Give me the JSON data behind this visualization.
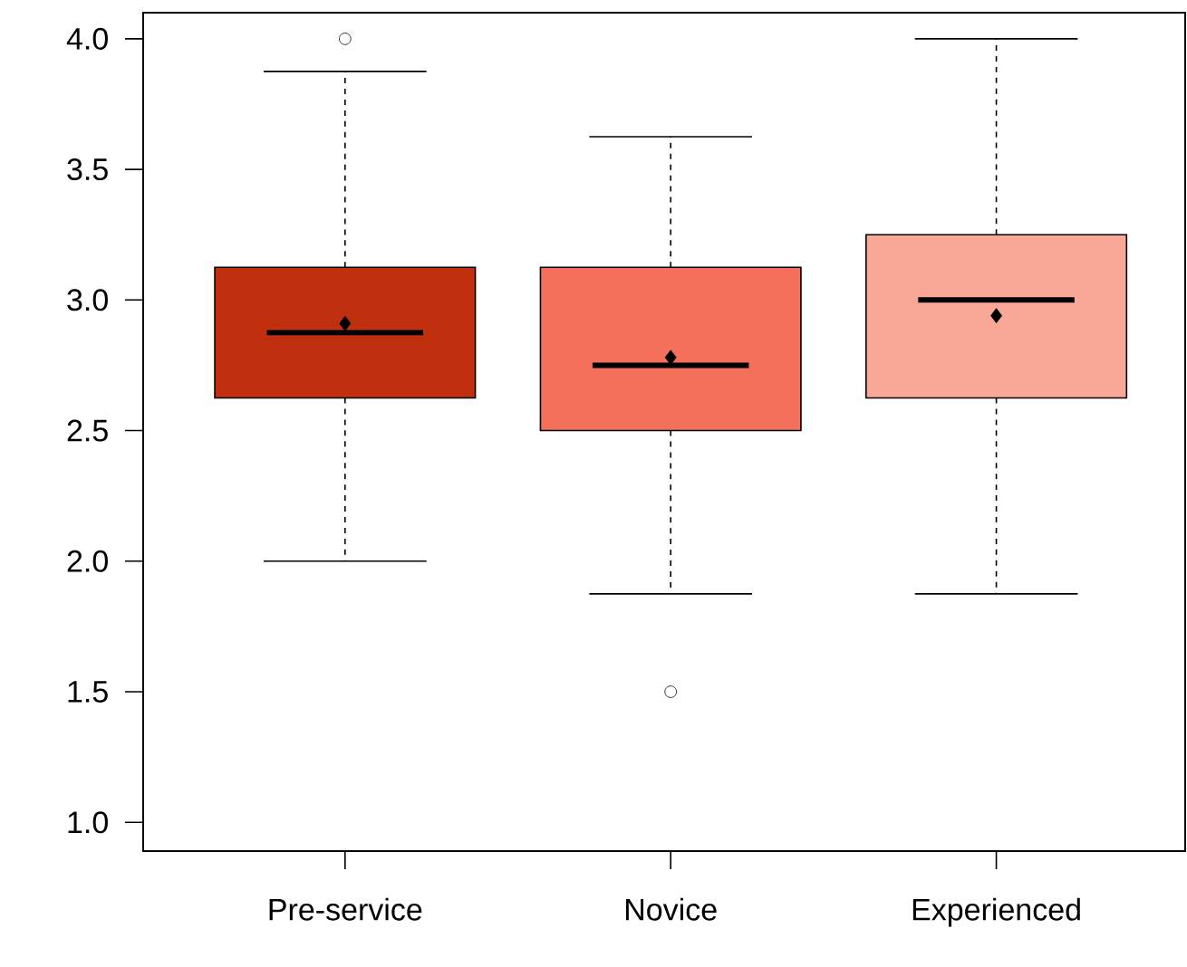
{
  "chart_data": {
    "type": "box",
    "categories": [
      "Pre-service",
      "Novice",
      "Experienced"
    ],
    "colors": [
      "#c0300f",
      "#f4705a",
      "#f9a898"
    ],
    "boxes": [
      {
        "low": 2.0,
        "q1": 2.625,
        "median": 2.875,
        "q3": 3.125,
        "high": 3.875,
        "mean": 2.91,
        "outliers": [
          4.0
        ]
      },
      {
        "low": 1.875,
        "q1": 2.5,
        "median": 2.75,
        "q3": 3.125,
        "high": 3.625,
        "mean": 2.78,
        "outliers": [
          1.5
        ]
      },
      {
        "low": 1.875,
        "q1": 2.625,
        "median": 3.0,
        "q3": 3.25,
        "high": 4.0,
        "mean": 2.94
      }
    ],
    "ylim": [
      0.89,
      4.1
    ],
    "yticks": [
      {
        "value": 1.0,
        "label": "1.0"
      },
      {
        "value": 1.5,
        "label": "1.5"
      },
      {
        "value": 2.0,
        "label": "2.0"
      },
      {
        "value": 2.5,
        "label": "2.5"
      },
      {
        "value": 3.0,
        "label": "3.0"
      },
      {
        "value": 3.5,
        "label": "3.5"
      },
      {
        "value": 4.0,
        "label": "4.0"
      }
    ]
  }
}
